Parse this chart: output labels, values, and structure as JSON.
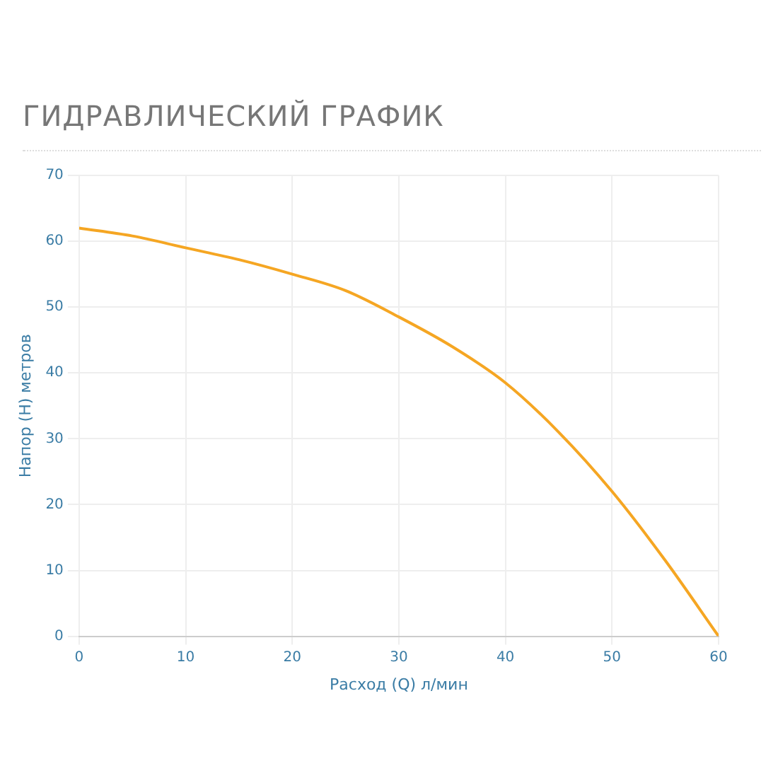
{
  "chart_data": {
    "type": "line",
    "title": "ГИДРАВЛИЧЕСКИЙ ГРАФИК",
    "xlabel": "Расход (Q) л/мин",
    "ylabel": "Напор (H) метров",
    "x": [
      0,
      5,
      10,
      15,
      20,
      25,
      30,
      35,
      40,
      45,
      50,
      55,
      60
    ],
    "series": [
      {
        "color": "#f5a623",
        "values": [
          62,
          60.8,
          59,
          57.2,
          55,
          52.5,
          48.5,
          44,
          38.5,
          31,
          22,
          11.5,
          0
        ]
      }
    ],
    "xlim": [
      0,
      60
    ],
    "xticks": [
      0,
      10,
      20,
      30,
      40,
      50,
      60
    ],
    "ylim": [
      0,
      70
    ],
    "yticks": [
      0,
      10,
      20,
      30,
      40,
      50,
      60,
      70
    ],
    "grid": true,
    "legend": false,
    "marker": "none",
    "line_style": "solid"
  }
}
